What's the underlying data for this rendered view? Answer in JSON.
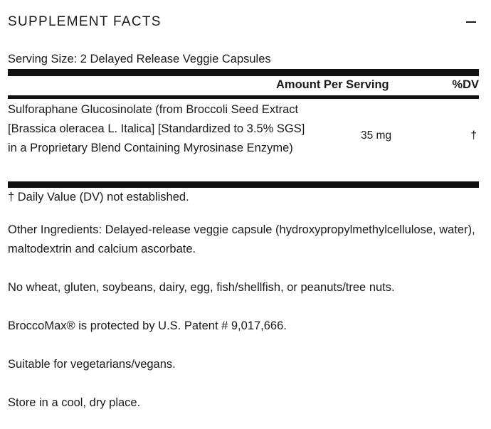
{
  "header": {
    "title": "SUPPLEMENT FACTS",
    "toggle_icon": "minus-icon"
  },
  "serving_size": "Serving Size: 2 Delayed Release Veggie Capsules",
  "table": {
    "columns": {
      "amount": "Amount Per Serving",
      "dv": "%DV"
    },
    "rows": [
      {
        "name": "Sulforaphane Glucosinolate (from Broccoli Seed Extract [Brassica oleracea L. Italica] [Standardized to 3.5% SGS] in a Proprietary Blend Containing Myrosinase Enzyme)",
        "amount": "35 mg",
        "dv": "†"
      }
    ]
  },
  "footnote": "† Daily Value (DV) not established.",
  "notes": {
    "other_ingredients": "Other Ingredients: Delayed-release veggie capsule (hydroxypropylmethylcellulose, water), maltodextrin and calcium ascorbate.",
    "allergens": "No wheat, gluten, soybeans, dairy, egg, fish/shellfish, or peanuts/tree nuts.",
    "patent": "BroccoMax® is protected by U.S. Patent # 9,017,666.",
    "suitability": "Suitable for vegetarians/vegans.",
    "storage": "Store in a cool, dry place."
  }
}
